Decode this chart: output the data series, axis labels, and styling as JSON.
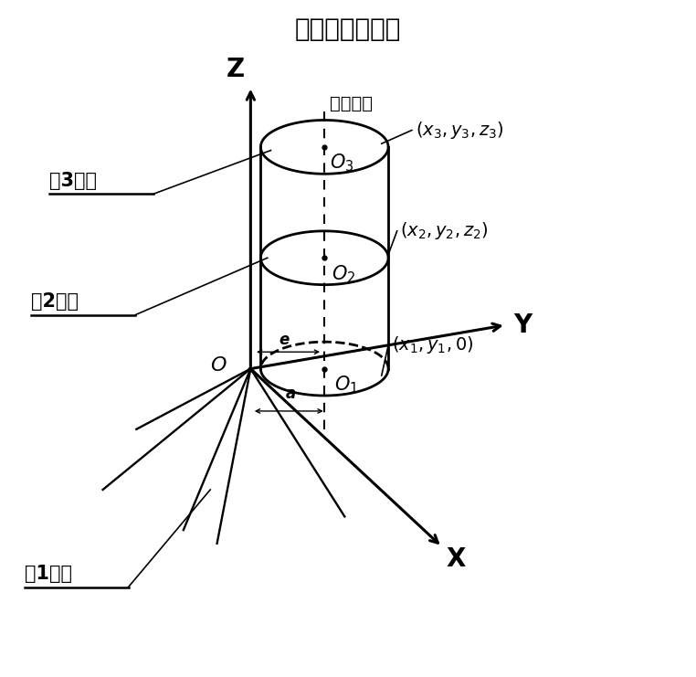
{
  "title": "传感器进给方向",
  "title_fontsize": 20,
  "background_color": "#ffffff",
  "text_color": "#000000",
  "labels": {
    "Z": "Z",
    "Y": "Y",
    "X": "X",
    "axle": "桥壳轴线",
    "sec1": "第1截面",
    "sec2": "第2截面",
    "sec3": "第3截面",
    "O": "O",
    "e": "e",
    "a": "a"
  }
}
